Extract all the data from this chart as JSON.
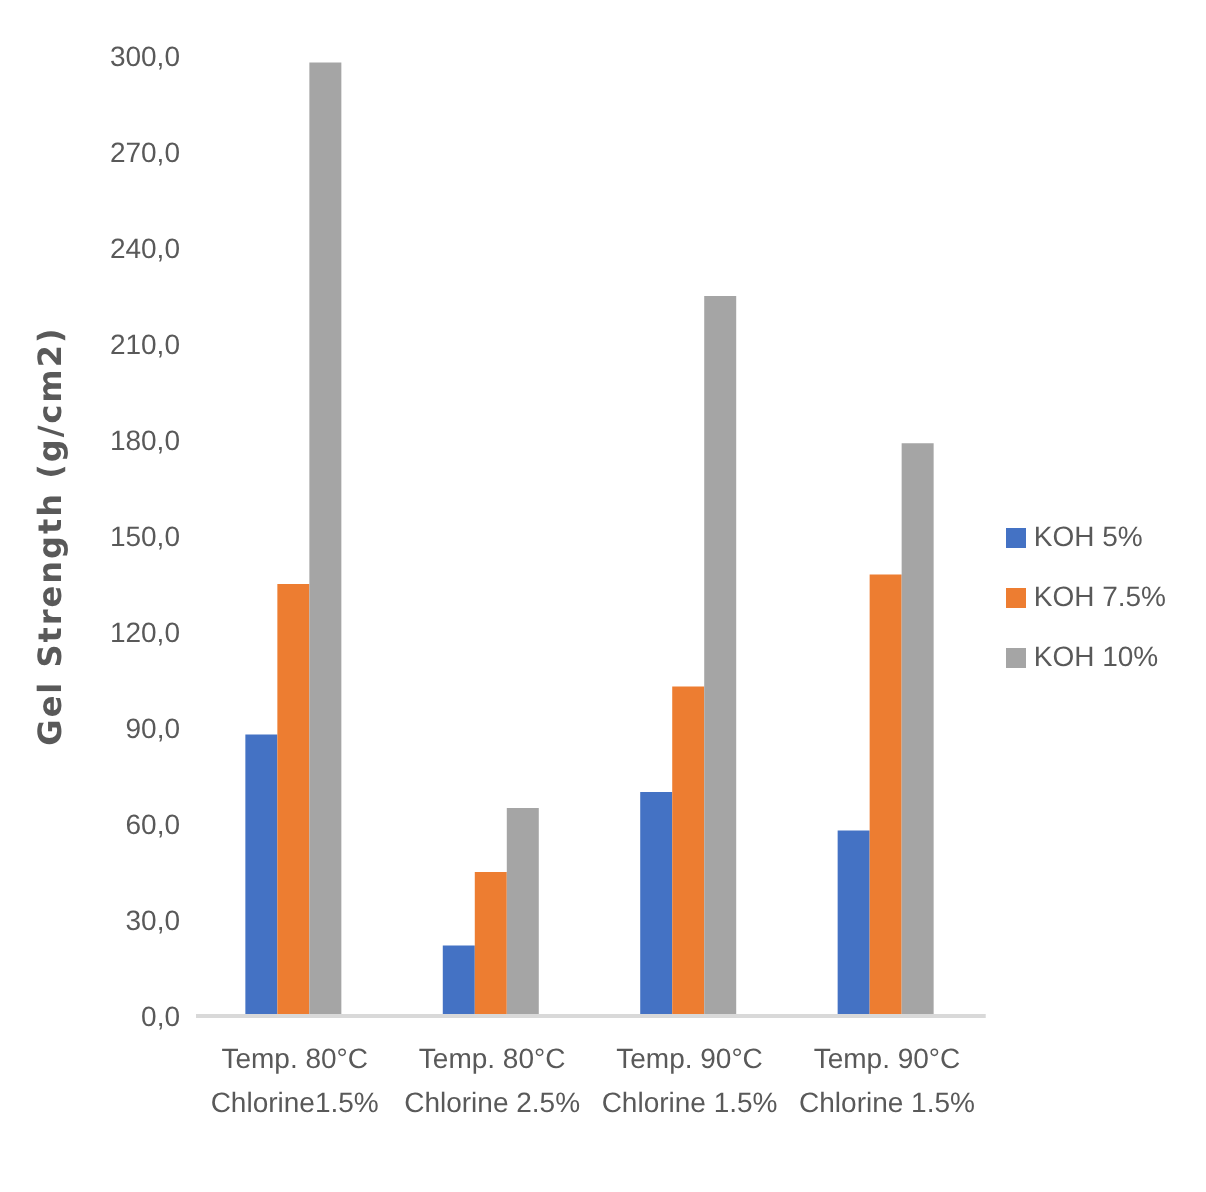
{
  "chart_data": {
    "type": "bar",
    "ylabel": "Gel Strength  (g/cm2)",
    "categories": [
      "Temp. 80°C\nChlorine1.5%",
      "Temp. 80°C\nChlorine 2.5%",
      "Temp. 90°C\nChlorine 1.5%",
      "Temp. 90°C\nChlorine 1.5%"
    ],
    "series": [
      {
        "name": "KOH 5%",
        "color": "#4472c4",
        "values": [
          88,
          22,
          70,
          58
        ]
      },
      {
        "name": "KOH 7.5%",
        "color": "#ed7d31",
        "values": [
          135,
          45,
          103,
          138
        ]
      },
      {
        "name": "KOH 10%",
        "color": "#a5a5a5",
        "values": [
          298,
          65,
          225,
          179
        ]
      }
    ],
    "ylim": [
      0,
      300
    ],
    "yticks": [
      {
        "value": 0,
        "label": "0,0"
      },
      {
        "value": 30,
        "label": "30,0"
      },
      {
        "value": 60,
        "label": "60,0"
      },
      {
        "value": 90,
        "label": "90,0"
      },
      {
        "value": 120,
        "label": "120,0"
      },
      {
        "value": 150,
        "label": "150,0"
      },
      {
        "value": 180,
        "label": "180,0"
      },
      {
        "value": 210,
        "label": "210,0"
      },
      {
        "value": 240,
        "label": "240,0"
      },
      {
        "value": 270,
        "label": "270,0"
      },
      {
        "value": 300,
        "label": "300,0"
      }
    ],
    "grid": false,
    "legend": "right"
  }
}
